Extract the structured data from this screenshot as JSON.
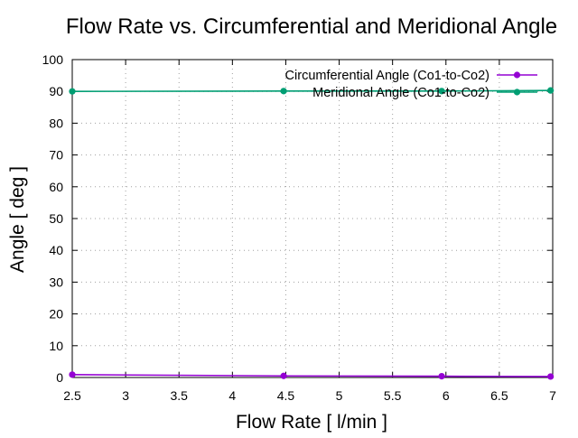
{
  "chart_data": {
    "type": "line",
    "title": "Flow Rate vs. Circumferential and Meridional Angle",
    "xlabel": "Flow Rate [ l/min ]",
    "ylabel": "Angle [ deg ]",
    "xlim": [
      2.5,
      7
    ],
    "ylim": [
      0,
      100
    ],
    "xticks": [
      "2.5",
      "3",
      "3.5",
      "4",
      "4.5",
      "5",
      "5.5",
      "6",
      "6.5",
      "7"
    ],
    "yticks": [
      "0",
      "10",
      "20",
      "30",
      "40",
      "50",
      "60",
      "70",
      "80",
      "90",
      "100"
    ],
    "grid": true,
    "legend_position": "top-right",
    "series": [
      {
        "name": "Circumferential Angle (Co1-to-Co2)",
        "color": "#9400d3",
        "x": [
          2.5,
          4.48,
          5.96,
          6.98
        ],
        "y": [
          0.9,
          0.5,
          0.4,
          0.3
        ]
      },
      {
        "name": "Meridional Angle (Co1-to-Co2)",
        "color": "#009e73",
        "x": [
          2.5,
          4.48,
          5.96,
          6.98
        ],
        "y": [
          90,
          90.1,
          90.1,
          90.3
        ]
      }
    ]
  }
}
